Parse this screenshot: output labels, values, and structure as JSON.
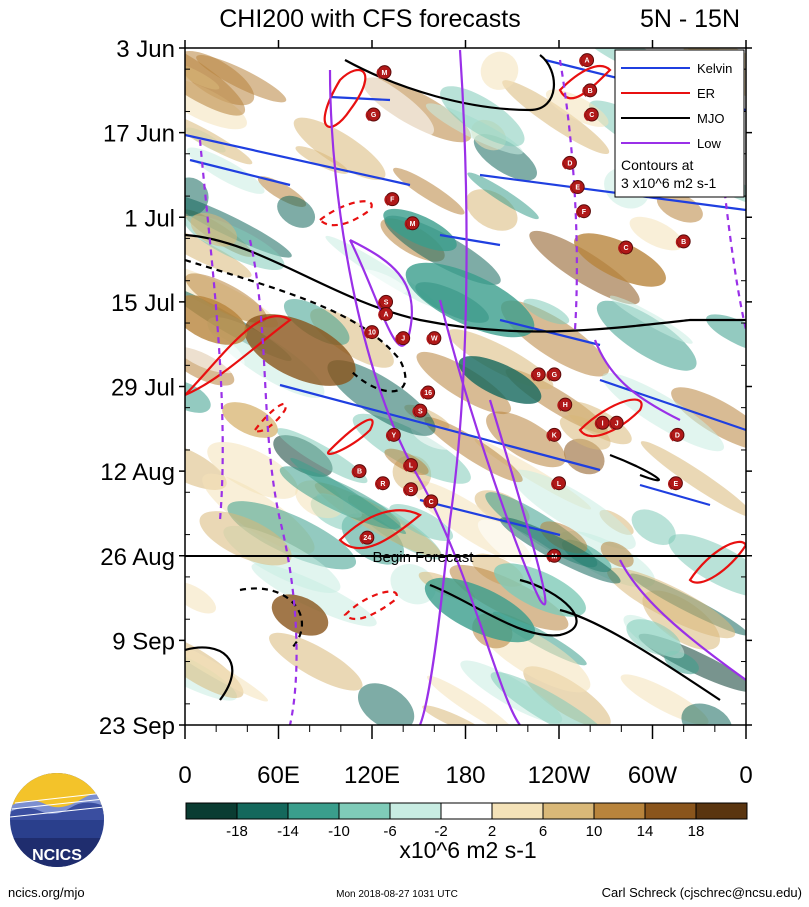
{
  "header": {
    "title": "CHI200 with CFS forecasts",
    "region": "5N - 15N"
  },
  "chart_data": {
    "type": "heatmap",
    "title": "CHI200 with CFS forecasts",
    "subtitle": "5N - 15N",
    "x_ticks": [
      "0",
      "60E",
      "120E",
      "180",
      "120W",
      "60W",
      "0"
    ],
    "x_values": [
      0,
      60,
      120,
      180,
      240,
      300,
      360
    ],
    "y_ticks": [
      "3 Jun",
      "17 Jun",
      "1 Jul",
      "15 Jul",
      "29 Jul",
      "12 Aug",
      "26 Aug",
      "9 Sep",
      "23 Sep"
    ],
    "y_values": [
      "2018-06-03",
      "2018-06-17",
      "2018-07-01",
      "2018-07-15",
      "2018-07-29",
      "2018-08-12",
      "2018-08-26",
      "2018-09-09",
      "2018-09-23"
    ],
    "forecast_start": "2018-08-26",
    "forecast_label": "Begin Forecast",
    "colorbar": {
      "labels": [
        "-18",
        "-14",
        "-10",
        "-6",
        "-2",
        "2",
        "6",
        "10",
        "14",
        "18"
      ],
      "colors": [
        "#0a3c32",
        "#14685c",
        "#3a9e8c",
        "#7fcbb8",
        "#c8ece2",
        "#ffffff",
        "#f4e2b8",
        "#d9b878",
        "#b8843c",
        "#8a551c",
        "#5a3510"
      ],
      "unit": "x10^6 m2 s-1"
    },
    "legend": {
      "position": "top-right",
      "entries": [
        {
          "name": "Kelvin",
          "color": "#1f3fe0"
        },
        {
          "name": "ER",
          "color": "#e81010"
        },
        {
          "name": "MJO",
          "color": "#000000"
        },
        {
          "name": "Low",
          "color": "#9a30e8"
        }
      ],
      "note": [
        "Contours at",
        "3 x10^6 m2 s-1"
      ]
    },
    "storms": [
      {
        "letter": "M",
        "lon": 128,
        "date": "2018-06-07"
      },
      {
        "letter": "G",
        "lon": 121,
        "date": "2018-06-14"
      },
      {
        "letter": "A",
        "lon": 258,
        "date": "2018-06-05"
      },
      {
        "letter": "B",
        "lon": 260,
        "date": "2018-06-10"
      },
      {
        "letter": "C",
        "lon": 261,
        "date": "2018-06-14"
      },
      {
        "letter": "F",
        "lon": 133,
        "date": "2018-06-28"
      },
      {
        "letter": "M",
        "lon": 146,
        "date": "2018-07-02"
      },
      {
        "letter": "D",
        "lon": 247,
        "date": "2018-06-22"
      },
      {
        "letter": "E",
        "lon": 252,
        "date": "2018-06-26"
      },
      {
        "letter": "F",
        "lon": 256,
        "date": "2018-06-30"
      },
      {
        "letter": "C",
        "lon": 283,
        "date": "2018-07-06"
      },
      {
        "letter": "B",
        "lon": 320,
        "date": "2018-07-05"
      },
      {
        "letter": "S",
        "lon": 129,
        "date": "2018-07-15"
      },
      {
        "letter": "A",
        "lon": 129,
        "date": "2018-07-17"
      },
      {
        "letter": "10",
        "lon": 120,
        "date": "2018-07-20"
      },
      {
        "letter": "J",
        "lon": 140,
        "date": "2018-07-21"
      },
      {
        "letter": "W",
        "lon": 160,
        "date": "2018-07-21"
      },
      {
        "letter": "9",
        "lon": 227,
        "date": "2018-07-27"
      },
      {
        "letter": "G",
        "lon": 237,
        "date": "2018-07-27"
      },
      {
        "letter": "16",
        "lon": 156,
        "date": "2018-07-30"
      },
      {
        "letter": "S",
        "lon": 151,
        "date": "2018-08-02"
      },
      {
        "letter": "H",
        "lon": 244,
        "date": "2018-08-01"
      },
      {
        "letter": "I",
        "lon": 268,
        "date": "2018-08-04"
      },
      {
        "letter": "J",
        "lon": 277,
        "date": "2018-08-04"
      },
      {
        "letter": "Y",
        "lon": 134,
        "date": "2018-08-06"
      },
      {
        "letter": "K",
        "lon": 237,
        "date": "2018-08-06"
      },
      {
        "letter": "D",
        "lon": 316,
        "date": "2018-08-06"
      },
      {
        "letter": "L",
        "lon": 145,
        "date": "2018-08-11"
      },
      {
        "letter": "B",
        "lon": 112,
        "date": "2018-08-12"
      },
      {
        "letter": "R",
        "lon": 127,
        "date": "2018-08-14"
      },
      {
        "letter": "S",
        "lon": 145,
        "date": "2018-08-15"
      },
      {
        "letter": "C",
        "lon": 158,
        "date": "2018-08-17"
      },
      {
        "letter": "L",
        "lon": 240,
        "date": "2018-08-14"
      },
      {
        "letter": "E",
        "lon": 315,
        "date": "2018-08-14"
      },
      {
        "letter": "24",
        "lon": 117,
        "date": "2018-08-23"
      },
      {
        "letter": "M",
        "lon": 237,
        "date": "2018-08-26"
      }
    ]
  },
  "footer": {
    "logo_text": "NCICS",
    "left": "ncics.org/mjo",
    "center": "Mon 2018-08-27 1031 UTC",
    "right": "Carl Schreck (cjschrec@ncsu.edu)"
  }
}
